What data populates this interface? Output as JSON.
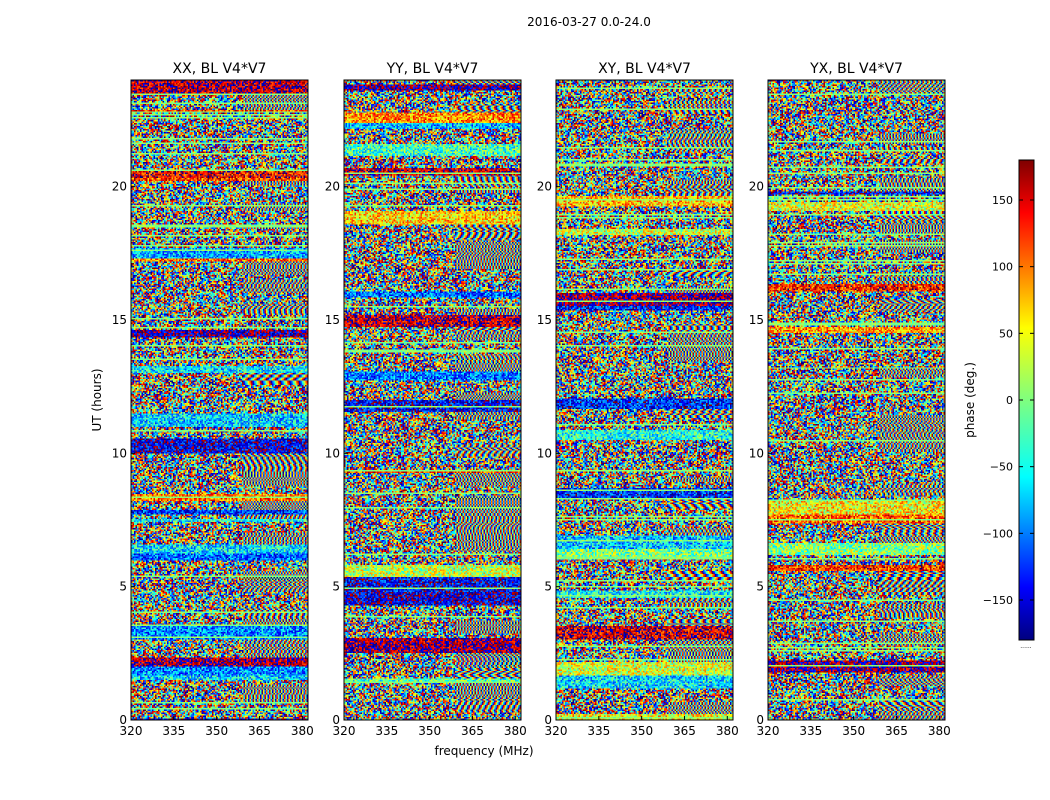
{
  "suptitle": "2016-03-27 0.0-24.0",
  "colors": {
    "jet": [
      "#00007f",
      "#0000ff",
      "#007fff",
      "#00ffff",
      "#7fff7f",
      "#ffff00",
      "#ff7f00",
      "#ff0000",
      "#7f0000"
    ],
    "axis": "#000000",
    "background": "#ffffff"
  },
  "chart_data": [
    {
      "type": "heatmap",
      "title": "XX, BL V4*V7",
      "xlabel": "",
      "ylabel": "UT (hours)",
      "xlim": [
        320,
        382
      ],
      "ylim": [
        0,
        24
      ],
      "xticks": [
        320,
        335,
        350,
        365,
        380
      ],
      "yticks": [
        0,
        5,
        10,
        15,
        20
      ],
      "value_range": [
        -180,
        180
      ]
    },
    {
      "type": "heatmap",
      "title": "YY, BL V4*V7",
      "xlabel": "frequency (MHz)",
      "ylabel": "",
      "xlim": [
        320,
        382
      ],
      "ylim": [
        0,
        24
      ],
      "xticks": [
        320,
        335,
        350,
        365,
        380
      ],
      "yticks": [
        0,
        5,
        10,
        15,
        20
      ],
      "value_range": [
        -180,
        180
      ]
    },
    {
      "type": "heatmap",
      "title": "XY, BL V4*V7",
      "xlabel": "",
      "ylabel": "",
      "xlim": [
        320,
        382
      ],
      "ylim": [
        0,
        24
      ],
      "xticks": [
        320,
        335,
        350,
        365,
        380
      ],
      "yticks": [
        0,
        5,
        10,
        15,
        20
      ],
      "value_range": [
        -180,
        180
      ]
    },
    {
      "type": "heatmap",
      "title": "YX, BL V4*V7",
      "xlabel": "",
      "ylabel": "",
      "xlim": [
        320,
        382
      ],
      "ylim": [
        0,
        24
      ],
      "xticks": [
        320,
        335,
        350,
        365,
        380
      ],
      "yticks": [
        0,
        5,
        10,
        15,
        20
      ],
      "value_range": [
        -180,
        180
      ]
    }
  ],
  "colorbar": {
    "label": "phase (deg.)",
    "range": [
      -180,
      180
    ],
    "ticks": [
      150,
      100,
      50,
      0,
      -50,
      -100,
      -150
    ],
    "tick_labels": [
      "150",
      "100",
      "50",
      "0",
      "−50",
      "−100",
      "−150"
    ],
    "footer": "......"
  }
}
